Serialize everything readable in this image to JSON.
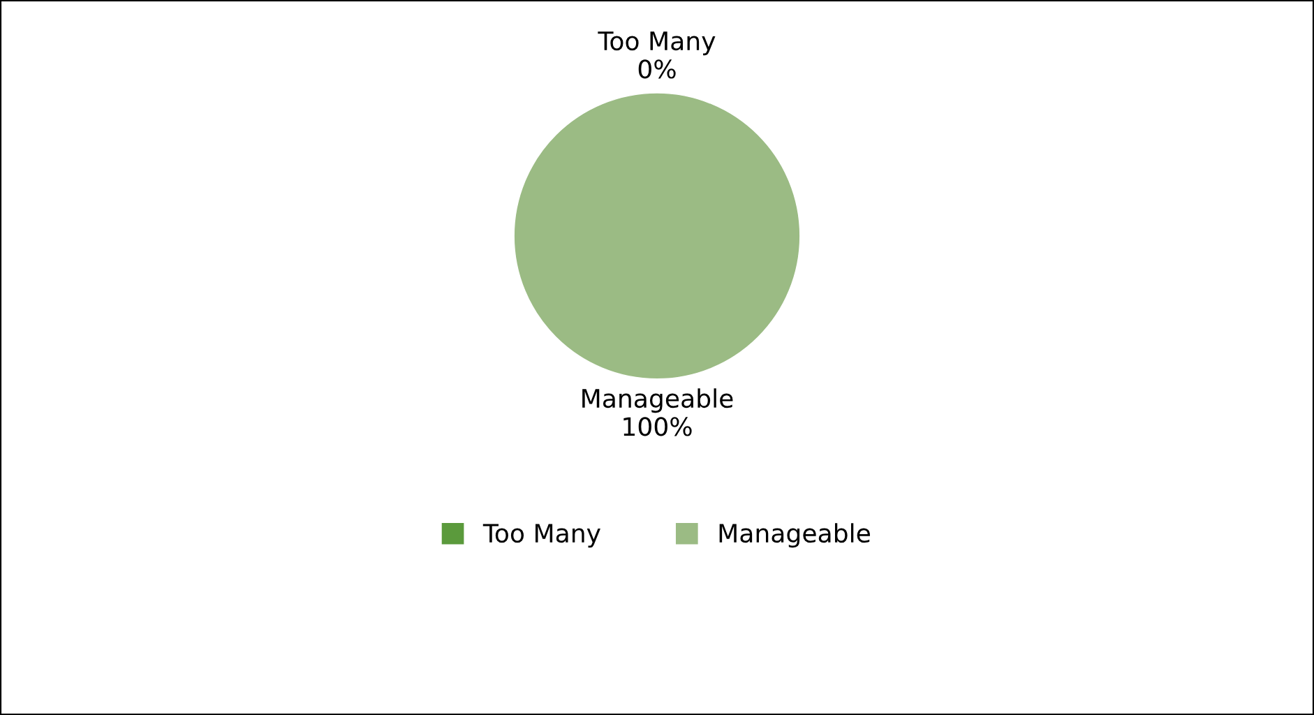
{
  "chart_data": {
    "type": "pie",
    "categories": [
      "Too Many",
      "Manageable"
    ],
    "values": [
      0,
      100
    ],
    "value_labels": [
      "0%",
      "100%"
    ],
    "colors": [
      "#5b9a3c",
      "#9bbb84"
    ],
    "legend": "bottom"
  }
}
